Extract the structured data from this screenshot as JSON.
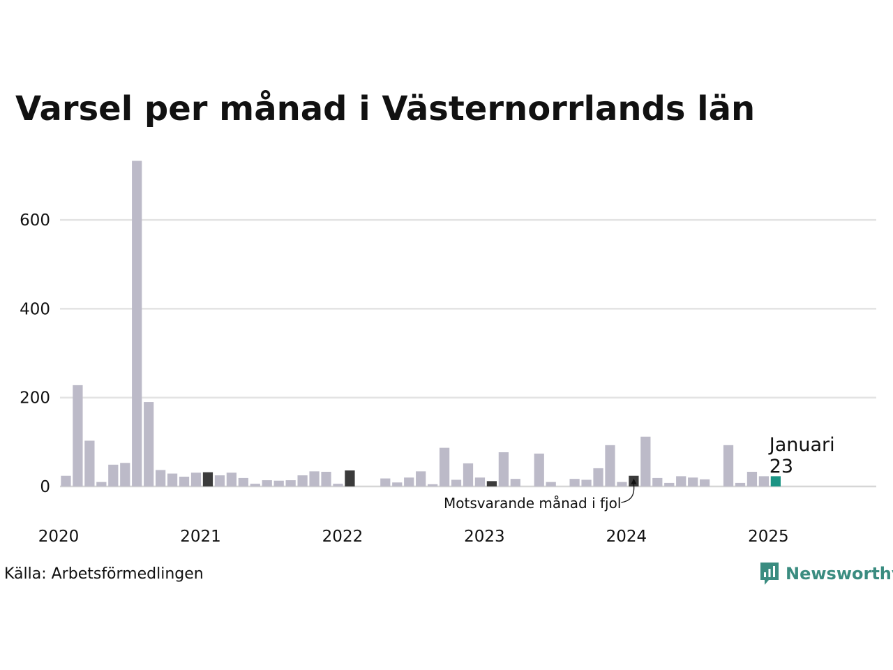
{
  "chart_data": {
    "type": "bar",
    "title": "Varsel per månad i Västernorrlands län",
    "source": "Källa: Arbetsförmedlingen",
    "xlabel": "",
    "ylabel": "",
    "ylim": [
      0,
      740
    ],
    "xlim": [
      "2020-01",
      "2025-09"
    ],
    "y_ticks": [
      0,
      200,
      400,
      600
    ],
    "x_ticks": [
      "2020",
      "2021",
      "2022",
      "2023",
      "2024",
      "2025"
    ],
    "grid": true,
    "categories": [
      "2020-01",
      "2020-02",
      "2020-03",
      "2020-04",
      "2020-05",
      "2020-06",
      "2020-07",
      "2020-08",
      "2020-09",
      "2020-10",
      "2020-11",
      "2020-12",
      "2021-01",
      "2021-02",
      "2021-03",
      "2021-04",
      "2021-05",
      "2021-06",
      "2021-07",
      "2021-08",
      "2021-09",
      "2021-10",
      "2021-11",
      "2021-12",
      "2022-01",
      "2022-02",
      "2022-03",
      "2022-04",
      "2022-05",
      "2022-06",
      "2022-07",
      "2022-08",
      "2022-09",
      "2022-10",
      "2022-11",
      "2022-12",
      "2023-01",
      "2023-02",
      "2023-03",
      "2023-04",
      "2023-05",
      "2023-06",
      "2023-07",
      "2023-08",
      "2023-09",
      "2023-10",
      "2023-11",
      "2023-12",
      "2024-01",
      "2024-02",
      "2024-03",
      "2024-04",
      "2024-05",
      "2024-06",
      "2024-07",
      "2024-08",
      "2024-09",
      "2024-10",
      "2024-11",
      "2024-12",
      "2025-01"
    ],
    "values": [
      24,
      228,
      103,
      10,
      49,
      53,
      733,
      190,
      37,
      29,
      22,
      31,
      32,
      25,
      31,
      19,
      6,
      14,
      13,
      14,
      25,
      34,
      33,
      6,
      36,
      0,
      0,
      18,
      9,
      20,
      34,
      5,
      87,
      15,
      52,
      20,
      12,
      77,
      17,
      0,
      74,
      10,
      0,
      17,
      15,
      41,
      93,
      10,
      24,
      112,
      19,
      8,
      23,
      20,
      16,
      0,
      93,
      8,
      33,
      23,
      23
    ],
    "highlight": {
      "current_index": 60,
      "current_color": "#1b9484",
      "previous_year_indices": [
        12,
        24,
        36,
        48
      ],
      "previous_year_color": "#3b3b3b",
      "label_month": "Januari",
      "label_value": "23"
    },
    "annotation": "Motsvarande månad i fjol",
    "colors": {
      "bar": "#bcbac8",
      "grid": "#e3e3e3",
      "baseline": "#d6d6d6"
    }
  },
  "logo": {
    "text": "Newsworthy",
    "color": "#3a8c80"
  }
}
